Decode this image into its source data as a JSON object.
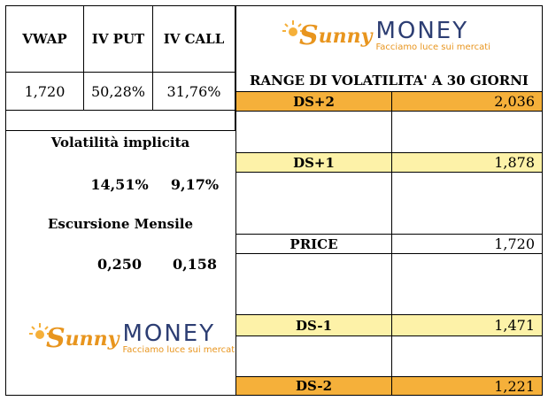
{
  "header": {
    "cols": [
      "VWAP",
      "IV PUT",
      "IV CALL"
    ],
    "values": [
      "1,720",
      "50,28%",
      "31,76%"
    ]
  },
  "left": {
    "vol_title": "Volatilità implicita",
    "vol_put": "14,51%",
    "vol_call": "9,17%",
    "esc_title": "Escursione Mensile",
    "esc_put": "0,250",
    "esc_call": "0,158"
  },
  "logo": {
    "lead": "S",
    "script": "unny",
    "word": "MONEY",
    "tagline": "Facciamo luce sui mercati"
  },
  "range": {
    "title": "RANGE DI VOLATILITA' A 30 GIORNI",
    "rows": [
      {
        "label": "DS+2",
        "value": "2,036"
      },
      {
        "label": "DS+1",
        "value": "1,878"
      },
      {
        "label": "PRICE",
        "value": "1,720"
      },
      {
        "label": "DS-1",
        "value": "1,471"
      },
      {
        "label": "DS-2",
        "value": "1,221"
      }
    ]
  },
  "colors": {
    "orange": "#f5b03a",
    "yellow": "#fdf2a8",
    "brand_blue": "#2d3e73",
    "brand_orange": "#e8951e"
  }
}
